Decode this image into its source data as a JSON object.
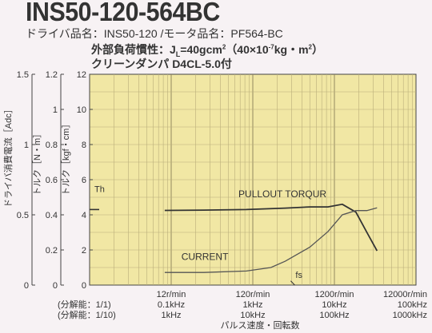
{
  "header": {
    "title": "INS50-120-564BC",
    "driver_line": "ドライバ品名：INS50-120 /モータ品名：PF564-BC",
    "inertia_prefix": "外部負荷慣性：J",
    "inertia_sub": "L",
    "inertia_mid": "=40gcm",
    "inertia_sup1": "2",
    "inertia_paren": "（40×10",
    "inertia_sup2": "-7",
    "inertia_unit": "kg・m",
    "inertia_sup3": "2",
    "inertia_close": "）",
    "damper_line": "クリーンダンパ  D4CL-5.0付"
  },
  "axes": {
    "current_label": "ドライバ消費電流［Adc］",
    "torque_nm_label": "トルク［N・m］",
    "torque_kgf_label": "トルク［kgf・cm］",
    "current_ticks": [
      "0",
      "0.5",
      "1",
      "1.5"
    ],
    "torque_nm_ticks": [
      "0",
      "0.2",
      "0.4",
      "0.6",
      "0.8",
      "1",
      "1.2"
    ],
    "torque_kgf_ticks": [
      "0",
      "2",
      "4",
      "6",
      "8",
      "10",
      "12"
    ],
    "x_ticks": [
      {
        "speed": "12r/min",
        "f1": "0.1kHz",
        "f2": "1kHz"
      },
      {
        "speed": "120r/min",
        "f1": "1kHz",
        "f2": "10kHz"
      },
      {
        "speed": "1200r/min",
        "f1": "10kHz",
        "f2": "100kHz"
      },
      {
        "speed": "12000r/min",
        "f1": "100kHz",
        "f2": "1000kHz"
      }
    ],
    "res_label_1": "(分解能：1/1)",
    "res_label_2": "(分解能：1/10)",
    "x_label": "パルス速度・回転数"
  },
  "chart_data": {
    "type": "line",
    "x_scale": "log",
    "xlabel": "パルス速度・回転数",
    "x_unit": "r/min",
    "xlim": [
      1.2,
      12000
    ],
    "ylim_kgfcm": [
      0,
      12
    ],
    "ylim_nm": [
      0,
      1.2
    ],
    "ylim_adc": [
      0,
      1.5
    ],
    "grid": true,
    "annotations": [
      "Th",
      "PULLOUT TORQUR",
      "CURRENT",
      "fs"
    ],
    "series": [
      {
        "name": "PULLOUT TORQUR",
        "unit": "kgf・cm",
        "x": [
          10,
          30,
          100,
          300,
          600,
          1000,
          1500,
          2200,
          3000,
          4000
        ],
        "y": [
          4.25,
          4.27,
          4.3,
          4.38,
          4.45,
          4.45,
          4.6,
          4.15,
          3.0,
          1.95
        ]
      },
      {
        "name": "CURRENT",
        "unit": "Adc",
        "x": [
          10,
          30,
          100,
          200,
          300,
          600,
          1000,
          1500,
          2200,
          3000,
          4000
        ],
        "y": [
          0.09,
          0.09,
          0.1,
          0.125,
          0.17,
          0.27,
          0.38,
          0.5,
          0.53,
          0.53,
          0.55
        ]
      }
    ],
    "fs_rpm": 350,
    "th_kgfcm": 4.3
  }
}
